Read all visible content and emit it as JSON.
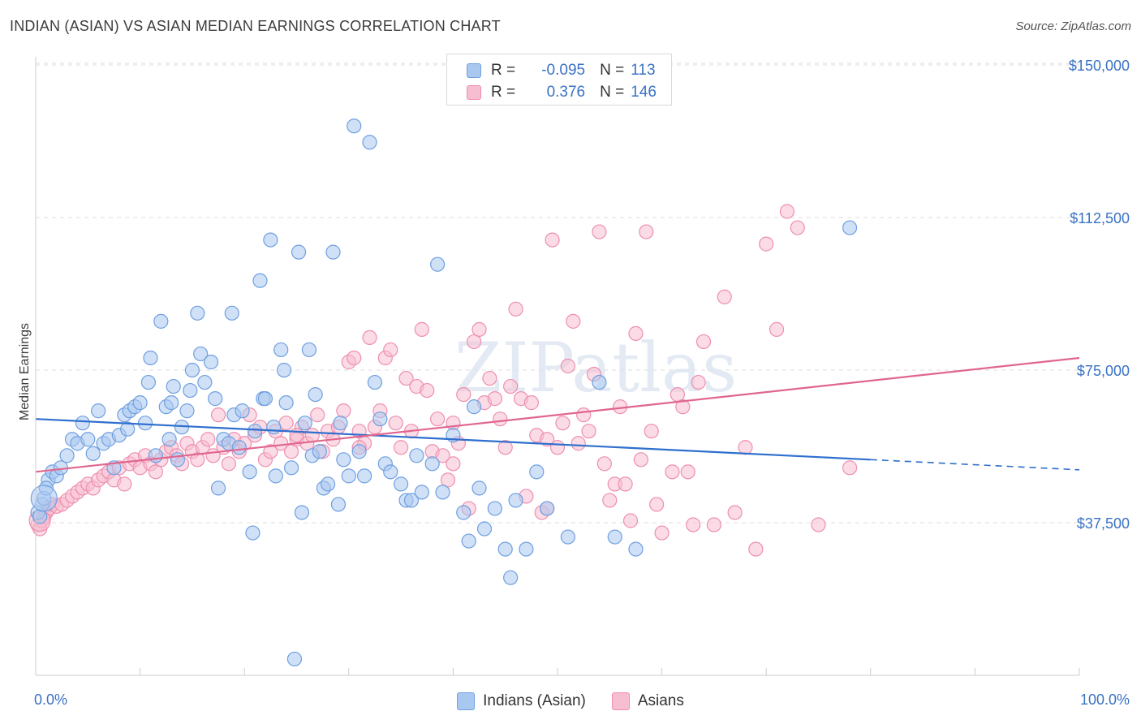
{
  "header": {
    "title": "INDIAN (ASIAN) VS ASIAN MEDIAN EARNINGS CORRELATION CHART",
    "source": "Source: ZipAtlas.com"
  },
  "watermark": "ZIPatlas",
  "legend_top": {
    "rows": [
      {
        "r_label": "R =",
        "r_value": "-0.095",
        "n_label": "N =",
        "n_value": "113"
      },
      {
        "r_label": "R =",
        "r_value": "0.376",
        "n_label": "N =",
        "n_value": "146"
      }
    ]
  },
  "colors": {
    "blue_fill": "#a9c8f0",
    "blue_stroke": "#6f9fe0",
    "blue_line": "#2f6fce",
    "pink_fill": "#f7bdd0",
    "pink_stroke": "#ee8fb0",
    "pink_line": "#e0668e",
    "axis_text": "#3a72c4",
    "grid": "#dddddd"
  },
  "chart_data": {
    "type": "scatter",
    "ylabel": "Median Earnings",
    "xlim": [
      0,
      100
    ],
    "ylim": [
      0,
      152000
    ],
    "x_ticks": [
      {
        "value": 0,
        "label": "0.0%"
      },
      {
        "value": 100,
        "label": "100.0%"
      }
    ],
    "y_ticks": [
      {
        "value": 37500,
        "label": "$37,500"
      },
      {
        "value": 75000,
        "label": "$75,000"
      },
      {
        "value": 112500,
        "label": "$112,500"
      },
      {
        "value": 150000,
        "label": "$150,000"
      }
    ],
    "legend_position": "bottom-center",
    "grid": true,
    "series": [
      {
        "name": "Indians (Asian)",
        "color": "#6f9fe0",
        "trend": {
          "x0": 0,
          "y0": 63000,
          "x1": 80,
          "y1": 53000,
          "dashed_to": 100,
          "y_dashed_end": 50500
        },
        "points": [
          [
            0.2,
            40000
          ],
          [
            0.4,
            39000
          ],
          [
            0.6,
            42000
          ],
          [
            0.8,
            43500
          ],
          [
            1.2,
            48000
          ],
          [
            1.6,
            50000
          ],
          [
            2.0,
            49000
          ],
          [
            2.4,
            51000
          ],
          [
            3.0,
            54000
          ],
          [
            3.5,
            58000
          ],
          [
            4.0,
            57000
          ],
          [
            4.5,
            62000
          ],
          [
            5.0,
            58000
          ],
          [
            5.5,
            54500
          ],
          [
            6.0,
            65000
          ],
          [
            6.5,
            57000
          ],
          [
            7.0,
            58000
          ],
          [
            7.5,
            51000
          ],
          [
            8.0,
            59000
          ],
          [
            8.5,
            64000
          ],
          [
            8.8,
            60500
          ],
          [
            9.0,
            65000
          ],
          [
            9.5,
            66000
          ],
          [
            10.0,
            67000
          ],
          [
            10.5,
            62000
          ],
          [
            10.8,
            72000
          ],
          [
            11.0,
            78000
          ],
          [
            11.5,
            54000
          ],
          [
            12.0,
            87000
          ],
          [
            12.5,
            66000
          ],
          [
            12.8,
            58000
          ],
          [
            13.0,
            67000
          ],
          [
            13.2,
            71000
          ],
          [
            13.6,
            53000
          ],
          [
            14.0,
            61000
          ],
          [
            14.5,
            65000
          ],
          [
            14.8,
            70000
          ],
          [
            15.0,
            75000
          ],
          [
            15.5,
            89000
          ],
          [
            15.8,
            79000
          ],
          [
            16.2,
            72000
          ],
          [
            16.8,
            77000
          ],
          [
            17.2,
            68000
          ],
          [
            17.5,
            46000
          ],
          [
            18.0,
            58000
          ],
          [
            18.5,
            57000
          ],
          [
            18.8,
            89000
          ],
          [
            19.0,
            64000
          ],
          [
            19.5,
            56000
          ],
          [
            19.8,
            65000
          ],
          [
            20.5,
            50000
          ],
          [
            20.8,
            35000
          ],
          [
            21.0,
            60000
          ],
          [
            21.5,
            97000
          ],
          [
            21.8,
            68000
          ],
          [
            22.0,
            68000
          ],
          [
            22.5,
            107000
          ],
          [
            22.8,
            61000
          ],
          [
            23.0,
            49000
          ],
          [
            23.5,
            80000
          ],
          [
            23.8,
            75000
          ],
          [
            24.0,
            67000
          ],
          [
            24.5,
            51000
          ],
          [
            24.8,
            4000
          ],
          [
            25.2,
            104000
          ],
          [
            25.5,
            40000
          ],
          [
            25.8,
            62000
          ],
          [
            26.2,
            80000
          ],
          [
            26.5,
            54000
          ],
          [
            26.8,
            69000
          ],
          [
            27.2,
            55000
          ],
          [
            27.6,
            46000
          ],
          [
            28.0,
            47000
          ],
          [
            28.5,
            104000
          ],
          [
            29.0,
            42000
          ],
          [
            29.2,
            62000
          ],
          [
            29.5,
            53000
          ],
          [
            30.0,
            49000
          ],
          [
            30.5,
            135000
          ],
          [
            31.0,
            55000
          ],
          [
            31.5,
            49000
          ],
          [
            32.0,
            131000
          ],
          [
            32.5,
            72000
          ],
          [
            33.0,
            63000
          ],
          [
            33.5,
            52000
          ],
          [
            34.0,
            50000
          ],
          [
            35.0,
            47000
          ],
          [
            35.5,
            43000
          ],
          [
            36.0,
            43000
          ],
          [
            36.5,
            54000
          ],
          [
            37.0,
            45000
          ],
          [
            38.0,
            52000
          ],
          [
            38.5,
            101000
          ],
          [
            39.0,
            45000
          ],
          [
            40.0,
            59000
          ],
          [
            41.0,
            40000
          ],
          [
            41.5,
            33000
          ],
          [
            42.0,
            66000
          ],
          [
            42.5,
            46000
          ],
          [
            43.0,
            36000
          ],
          [
            44.0,
            41000
          ],
          [
            45.0,
            31000
          ],
          [
            45.5,
            24000
          ],
          [
            46.0,
            43000
          ],
          [
            47.0,
            31000
          ],
          [
            48.0,
            50000
          ],
          [
            49.0,
            41000
          ],
          [
            51.0,
            34000
          ],
          [
            54.0,
            72000
          ],
          [
            55.5,
            34000
          ],
          [
            57.5,
            31000
          ],
          [
            78.0,
            110000
          ],
          [
            1.0,
            46000
          ]
        ]
      },
      {
        "name": "Asians",
        "color": "#ee8fb0",
        "trend": {
          "x0": 0,
          "y0": 50000,
          "x1": 100,
          "y1": 78000
        },
        "points": [
          [
            0.2,
            37000
          ],
          [
            0.4,
            36000
          ],
          [
            0.6,
            38000
          ],
          [
            0.8,
            39000
          ],
          [
            1.0,
            40000
          ],
          [
            1.3,
            41000
          ],
          [
            1.6,
            42000
          ],
          [
            2.0,
            41500
          ],
          [
            2.5,
            42000
          ],
          [
            3.0,
            43000
          ],
          [
            3.5,
            44000
          ],
          [
            4.0,
            45000
          ],
          [
            4.5,
            46000
          ],
          [
            5.0,
            47000
          ],
          [
            5.5,
            46000
          ],
          [
            6.0,
            48000
          ],
          [
            6.5,
            49000
          ],
          [
            7.0,
            50000
          ],
          [
            7.5,
            48000
          ],
          [
            8.0,
            51000
          ],
          [
            8.5,
            47000
          ],
          [
            9.0,
            52000
          ],
          [
            9.5,
            53000
          ],
          [
            10.0,
            51000
          ],
          [
            10.5,
            54000
          ],
          [
            11.0,
            52000
          ],
          [
            11.5,
            50000
          ],
          [
            12.0,
            53000
          ],
          [
            12.5,
            55000
          ],
          [
            13.0,
            56000
          ],
          [
            13.5,
            54000
          ],
          [
            14.0,
            52000
          ],
          [
            14.5,
            57000
          ],
          [
            15.0,
            55000
          ],
          [
            15.5,
            53000
          ],
          [
            16.0,
            56000
          ],
          [
            16.5,
            58000
          ],
          [
            17.0,
            54000
          ],
          [
            17.5,
            64000
          ],
          [
            18.0,
            56000
          ],
          [
            18.5,
            52000
          ],
          [
            19.0,
            58000
          ],
          [
            19.5,
            55000
          ],
          [
            20.0,
            57000
          ],
          [
            20.5,
            64000
          ],
          [
            21.0,
            59000
          ],
          [
            21.5,
            61000
          ],
          [
            22.0,
            53000
          ],
          [
            22.5,
            55000
          ],
          [
            23.0,
            60000
          ],
          [
            23.5,
            57000
          ],
          [
            24.0,
            62000
          ],
          [
            24.5,
            55000
          ],
          [
            25.0,
            58000
          ],
          [
            25.5,
            61000
          ],
          [
            26.0,
            57000
          ],
          [
            26.5,
            59000
          ],
          [
            27.0,
            64000
          ],
          [
            27.5,
            55000
          ],
          [
            28.0,
            60000
          ],
          [
            28.5,
            58000
          ],
          [
            29.0,
            61000
          ],
          [
            29.5,
            65000
          ],
          [
            30.0,
            77000
          ],
          [
            30.5,
            78000
          ],
          [
            31.0,
            60000
          ],
          [
            31.5,
            57000
          ],
          [
            32.0,
            83000
          ],
          [
            32.5,
            61000
          ],
          [
            33.0,
            65000
          ],
          [
            33.5,
            78000
          ],
          [
            34.0,
            80000
          ],
          [
            34.5,
            62000
          ],
          [
            35.0,
            56000
          ],
          [
            35.5,
            73000
          ],
          [
            36.0,
            60000
          ],
          [
            36.5,
            71000
          ],
          [
            37.0,
            85000
          ],
          [
            37.5,
            70000
          ],
          [
            38.0,
            55000
          ],
          [
            38.5,
            63000
          ],
          [
            39.0,
            54000
          ],
          [
            39.5,
            48000
          ],
          [
            40.0,
            62000
          ],
          [
            40.5,
            57000
          ],
          [
            41.0,
            69000
          ],
          [
            41.5,
            41000
          ],
          [
            42.0,
            82000
          ],
          [
            42.5,
            85000
          ],
          [
            43.0,
            67000
          ],
          [
            43.5,
            73000
          ],
          [
            44.0,
            68000
          ],
          [
            44.5,
            63000
          ],
          [
            45.0,
            56000
          ],
          [
            45.5,
            71000
          ],
          [
            46.0,
            90000
          ],
          [
            46.5,
            68000
          ],
          [
            47.0,
            44000
          ],
          [
            47.5,
            67000
          ],
          [
            48.0,
            59000
          ],
          [
            48.5,
            40000
          ],
          [
            49.0,
            58000
          ],
          [
            49.5,
            107000
          ],
          [
            50.0,
            56000
          ],
          [
            50.5,
            62000
          ],
          [
            51.0,
            76000
          ],
          [
            51.5,
            87000
          ],
          [
            52.0,
            57000
          ],
          [
            52.5,
            64000
          ],
          [
            53.0,
            60000
          ],
          [
            53.5,
            74000
          ],
          [
            54.0,
            109000
          ],
          [
            54.5,
            52000
          ],
          [
            55.0,
            43000
          ],
          [
            55.5,
            47000
          ],
          [
            56.0,
            66000
          ],
          [
            56.5,
            47000
          ],
          [
            57.0,
            38000
          ],
          [
            57.5,
            84000
          ],
          [
            58.0,
            53000
          ],
          [
            58.5,
            109000
          ],
          [
            59.0,
            60000
          ],
          [
            59.5,
            42000
          ],
          [
            60.0,
            35000
          ],
          [
            61.0,
            50000
          ],
          [
            61.5,
            69000
          ],
          [
            62.0,
            66000
          ],
          [
            62.5,
            50000
          ],
          [
            63.0,
            37000
          ],
          [
            63.5,
            72000
          ],
          [
            64.0,
            82000
          ],
          [
            65.0,
            37000
          ],
          [
            66.0,
            93000
          ],
          [
            67.0,
            40000
          ],
          [
            68.0,
            56000
          ],
          [
            69.0,
            31000
          ],
          [
            70.0,
            106000
          ],
          [
            71.0,
            85000
          ],
          [
            72.0,
            114000
          ],
          [
            73.0,
            110000
          ],
          [
            75.0,
            37000
          ],
          [
            78.0,
            51000
          ],
          [
            49.0,
            41000
          ],
          [
            31.0,
            56000
          ],
          [
            25.0,
            59000
          ],
          [
            40.0,
            52000
          ]
        ]
      }
    ]
  },
  "bottom_legend": {
    "items": [
      {
        "label": "Indians (Asian)"
      },
      {
        "label": "Asians"
      }
    ]
  }
}
